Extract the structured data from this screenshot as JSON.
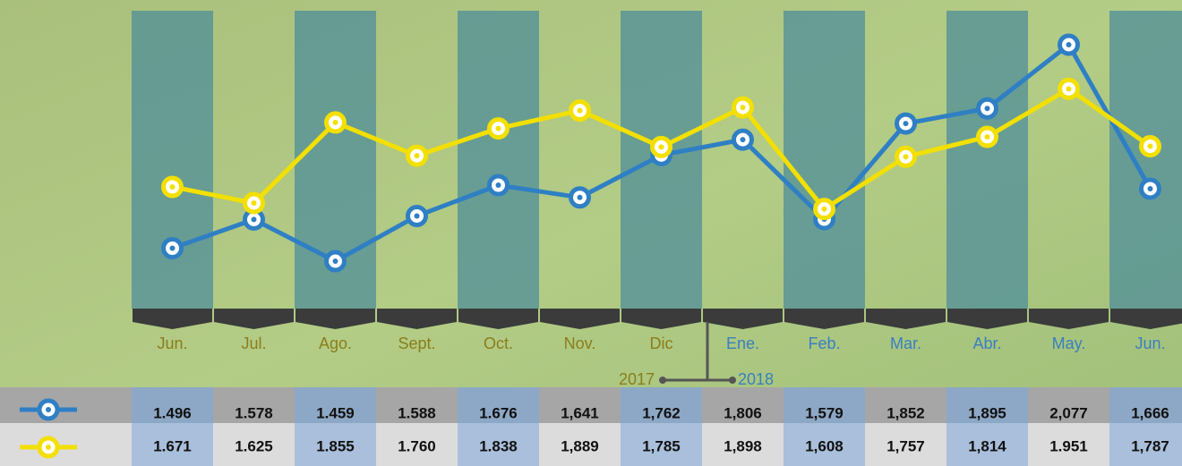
{
  "chart_data": {
    "type": "line",
    "categories": [
      "Jun.",
      "Jul.",
      "Ago.",
      "Sept.",
      "Oct.",
      "Nov.",
      "Dic",
      "Ene.",
      "Feb.",
      "Mar.",
      "Abr.",
      "May.",
      "Jun."
    ],
    "annotations": [
      "2017",
      "2018"
    ],
    "series": [
      {
        "color": "#2f7fc4",
        "values": [
          1496,
          1578,
          1459,
          1588,
          1676,
          1641,
          1762,
          1806,
          1579,
          1852,
          1895,
          2077,
          1666
        ],
        "value_labels": [
          "1.496",
          "1.578",
          "1.459",
          "1.588",
          "1.676",
          "1,641",
          "1,762",
          "1,806",
          "1,579",
          "1,852",
          "1,895",
          "2,077",
          "1,666"
        ]
      },
      {
        "color": "#f3e000",
        "values": [
          1671,
          1625,
          1855,
          1760,
          1838,
          1889,
          1785,
          1898,
          1608,
          1757,
          1814,
          1951,
          1787
        ],
        "value_labels": [
          "1.671",
          "1.625",
          "1.855",
          "1.760",
          "1.838",
          "1,889",
          "1,785",
          "1,898",
          "1,608",
          "1,757",
          "1,814",
          "1.951",
          "1,787"
        ]
      }
    ]
  }
}
